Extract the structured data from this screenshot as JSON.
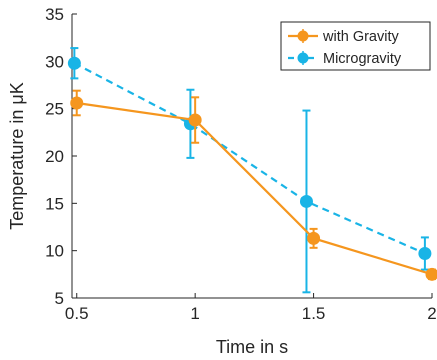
{
  "chart_data": {
    "type": "line",
    "xlabel": "Time in s",
    "ylabel": "Temperature in μK",
    "xlim": [
      0.48,
      2.0
    ],
    "ylim": [
      5,
      35
    ],
    "x_ticks": [
      0.5,
      1,
      1.5,
      2
    ],
    "x_tick_labels": [
      "0.5",
      "1",
      "1.5",
      "2"
    ],
    "y_ticks": [
      5,
      10,
      15,
      20,
      25,
      30,
      35
    ],
    "y_tick_labels": [
      "5",
      "10",
      "15",
      "20",
      "25",
      "30",
      "35"
    ],
    "grid": false,
    "legend_position": "top-right",
    "series": [
      {
        "name": "with Gravity",
        "color": "#F5961E",
        "line_style": "solid",
        "marker": "circle",
        "points": [
          {
            "x": 0.5,
            "y": 25.6,
            "err": 1.3
          },
          {
            "x": 1.0,
            "y": 23.8,
            "err": 2.4
          },
          {
            "x": 1.5,
            "y": 11.3,
            "err": 1.0
          },
          {
            "x": 2.0,
            "y": 7.5,
            "err": 0.5
          }
        ]
      },
      {
        "name": "Microgravity",
        "color": "#19B4E6",
        "line_style": "dashed",
        "marker": "circle",
        "points": [
          {
            "x": 0.49,
            "y": 29.8,
            "err": 1.6
          },
          {
            "x": 0.98,
            "y": 23.4,
            "err": 3.6
          },
          {
            "x": 1.47,
            "y": 15.2,
            "err": 9.6
          },
          {
            "x": 1.97,
            "y": 9.7,
            "err": 1.7
          }
        ]
      }
    ]
  }
}
